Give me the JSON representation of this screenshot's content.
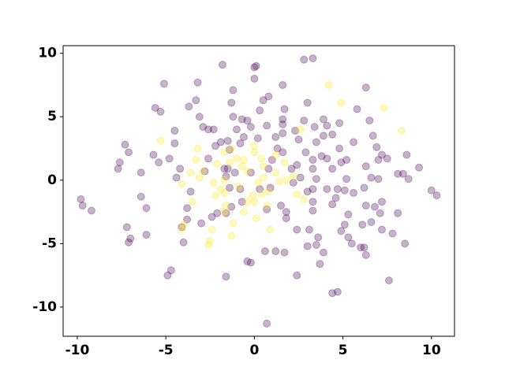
{
  "chart_data": {
    "type": "scatter",
    "xlim": [
      -10.8,
      11.3
    ],
    "ylim": [
      -12.3,
      10.6
    ],
    "xticks": [
      -10,
      -5,
      0,
      5,
      10
    ],
    "yticks": [
      -10,
      -5,
      0,
      5,
      10
    ],
    "series": [
      {
        "color": "#440154",
        "x": [
          -9.8,
          -9.7,
          -9.2,
          -7.7,
          -7.6,
          -7.3,
          -7.1,
          -6.4,
          -7.2,
          -7.1,
          -7.0,
          -6.1,
          -6.1,
          -6.4,
          -5.7,
          -5.4,
          -5.6,
          -5.3,
          -4.5,
          -4.8,
          -4.5,
          -4.4,
          -4.2,
          -5.1,
          -3.7,
          -3.3,
          -3.2,
          -3.1,
          -2.9,
          -2.6,
          -2.2,
          -2.6,
          -2.8,
          -3.6,
          -3.8,
          -3.8,
          -4.1,
          -4.0,
          -4.7,
          -4.9,
          -3.0,
          -2.4,
          -2.1,
          -1.9,
          -1.5,
          -1.4,
          -1.2,
          -1.0,
          -0.8,
          -0.6,
          -1.2,
          -1.3,
          -1.8,
          -2.3,
          -1.7,
          -1.5,
          -1.6,
          -1.1,
          -1.4,
          -1.3,
          -1.6,
          -0.7,
          -0.8,
          0.0,
          0.1,
          0.0,
          0.8,
          0.5,
          0.3,
          -0.4,
          -0.2,
          0.2,
          0.7,
          1.2,
          1.6,
          1.6,
          1.7,
          1.6,
          1.6,
          1.3,
          0.8,
          1.0,
          -0.2,
          0.3,
          0.9,
          0.7,
          1.5,
          1.8,
          1.8,
          2.2,
          2.1,
          2.6,
          2.9,
          2.5,
          2.3,
          2.8,
          3.0,
          2.8,
          3.3,
          3.4,
          3.5,
          3.3,
          3.3,
          3.5,
          3.3,
          3.3,
          3.3,
          3.1,
          3.6,
          3.5,
          3.0,
          3.9,
          3.7,
          1.7,
          1.2,
          0.6,
          -0.4,
          -0.2,
          0.7,
          -0.7,
          1.6,
          3.9,
          3.9,
          4.1,
          4.4,
          3.8,
          4.1,
          4.4,
          4.1,
          4.7,
          4.6,
          4.4,
          5.1,
          4.8,
          4.8,
          4.9,
          5.2,
          5.2,
          5.6,
          5.8,
          6.3,
          6.5,
          6.7,
          6.9,
          6.3,
          6.6,
          6.2,
          6.3,
          6.8,
          7.2,
          7.2,
          7.0,
          7.5,
          7.0,
          6.6,
          6.1,
          5.3,
          5.1,
          4.9,
          5.3,
          5.5,
          6.2,
          6.3,
          7.2,
          7.1,
          7.8,
          8.1,
          8.5,
          8.4,
          8.7,
          9.3,
          8.1,
          8.6,
          10.0,
          10.3,
          6.0,
          4.7,
          4.4,
          7.6,
          2.4,
          -1.6,
          2.4,
          3.0,
          5.6,
          2.4
        ],
        "values": [
          -1.5,
          -2.0,
          -2.4,
          0.9,
          1.4,
          2.8,
          2.2,
          0.6,
          -3.7,
          -4.9,
          -4.6,
          -4.3,
          -2.2,
          -1.3,
          2.0,
          1.4,
          5.7,
          5.4,
          3.9,
          1.7,
          2.9,
          0.2,
          0.9,
          7.6,
          5.8,
          6.3,
          7.7,
          5.0,
          4.2,
          4.0,
          2.7,
          1.7,
          0.7,
          -0.9,
          -2.2,
          -3.1,
          -3.7,
          -4.9,
          -7.1,
          -7.5,
          -3.4,
          -2.9,
          -2.6,
          3.0,
          3.1,
          2.4,
          5.0,
          4.0,
          2.9,
          3.4,
          7.1,
          6.1,
          9.1,
          4.0,
          0.9,
          0.9,
          0.3,
          0.6,
          -0.6,
          -2.1,
          -2.6,
          -1.7,
          -0.7,
          8.9,
          9.0,
          8.0,
          6.6,
          6.3,
          5.5,
          4.7,
          4.2,
          3.3,
          4.3,
          3.4,
          4.4,
          7.5,
          5.6,
          3.7,
          2.2,
          2.5,
          0.9,
          1.6,
          0.6,
          -0.7,
          -0.6,
          -2.3,
          -2.0,
          -2.5,
          -3.0,
          -0.2,
          0.9,
          0.2,
          2.2,
          3.2,
          3.9,
          4.7,
          6.1,
          9.5,
          9.6,
          4.2,
          3.0,
          1.6,
          0.9,
          0.1,
          -0.7,
          -1.7,
          -2.4,
          -3.9,
          -4.5,
          -5.1,
          -5.2,
          -5.7,
          -6.6,
          -5.7,
          -5.6,
          -5.6,
          -6.4,
          -6.5,
          -11.3,
          4.8,
          4.8,
          4.8,
          3.5,
          4.3,
          3.6,
          1.9,
          1.7,
          0.9,
          -0.7,
          -0.7,
          -1.4,
          -1.9,
          -0.8,
          4.5,
          2.5,
          1.4,
          1.6,
          0.1,
          3.0,
          5.6,
          7.3,
          4.7,
          3.5,
          2.6,
          1.1,
          0.2,
          -0.6,
          -2.0,
          -2.1,
          -1.7,
          2.0,
          1.6,
          1.7,
          0.1,
          -3.3,
          -3.5,
          -2.7,
          -3.5,
          -4.0,
          -4.5,
          -5.0,
          -5.3,
          -5.9,
          -3.9,
          -2.6,
          -4.2,
          -2.6,
          -5.0,
          0.5,
          0.1,
          1.0,
          0.5,
          2.0,
          -0.8,
          -1.2,
          -5.3,
          -8.8,
          -8.9,
          -7.9,
          -7.5,
          -7.6,
          -3.9,
          -0.9,
          -1.0,
          1.2
        ]
      },
      {
        "color": "#fde725",
        "x": [
          -5.3,
          -3.2,
          -3.3,
          -2.9,
          -3.1,
          -3.6,
          -3.5,
          -4.1,
          -4.0,
          -4.1,
          -2.5,
          -2.6,
          -2.4,
          -2.3,
          -2.2,
          -1.9,
          -1.7,
          -1.7,
          -1.6,
          -1.2,
          -1.3,
          -0.6,
          -0.9,
          -1.4,
          -1.7,
          -1.3,
          -1.0,
          -0.7,
          -0.4,
          0.0,
          0.0,
          0.4,
          0.5,
          0.5,
          0.2,
          -0.1,
          0.0,
          0.4,
          0.1,
          -0.4,
          0.9,
          0.7,
          0.8,
          1.4,
          1.2,
          1.2,
          1.7,
          2.2,
          1.8,
          2.4,
          2.8,
          2.6,
          4.2,
          4.9,
          7.3,
          8.3,
          -1.7,
          -2.1,
          -0.6
        ],
        "values": [
          3.1,
          2.5,
          1.6,
          0.7,
          0.2,
          0.6,
          -1.7,
          -0.3,
          -3.5,
          -3.9,
          -4.8,
          -5.1,
          -3.9,
          -0.2,
          -1.2,
          -0.7,
          -1.0,
          -2.5,
          -2.0,
          -3.4,
          -4.4,
          -2.5,
          -0.5,
          1.4,
          2.2,
          2.5,
          1.7,
          1.1,
          0.7,
          2.2,
          2.7,
          1.7,
          1.1,
          0.2,
          -0.2,
          -1.2,
          -1.7,
          -1.1,
          -3.0,
          -1.7,
          -3.9,
          -2.0,
          -0.9,
          -0.1,
          0.6,
          2.0,
          1.4,
          0.3,
          0.0,
          -1.1,
          -1.5,
          4.0,
          7.5,
          6.1,
          5.7,
          3.9,
          0.0,
          1.3,
          1.6
        ]
      }
    ]
  }
}
